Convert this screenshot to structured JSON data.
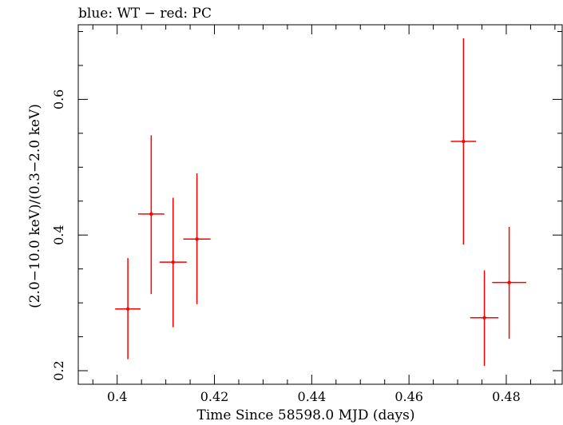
{
  "chart_data": {
    "type": "scatter",
    "title": "blue: WT − red: PC",
    "xlabel": "Time Since 58598.0 MJD (days)",
    "ylabel": "(2.0−10.0 keV)/(0.3−2.0 keV)",
    "xlim": [
      0.392,
      0.4915
    ],
    "ylim": [
      0.18,
      0.71
    ],
    "x_ticks": [
      0.4,
      0.42,
      0.44,
      0.46,
      0.48
    ],
    "x_tick_labels": [
      "0.4",
      "0.42",
      "0.44",
      "0.46",
      "0.48"
    ],
    "y_ticks": [
      0.2,
      0.4,
      0.6
    ],
    "y_tick_labels": [
      "0.2",
      "0.4",
      "0.6"
    ],
    "x_minor_step": 0.005,
    "y_minor_step": 0.05,
    "grid": false,
    "series": [
      {
        "name": "PC",
        "color": "#ff0000",
        "points": [
          {
            "x": 0.4022,
            "xerr": 0.0026,
            "y": 0.291,
            "ylo": 0.217,
            "yhi": 0.366
          },
          {
            "x": 0.407,
            "xerr": 0.0027,
            "y": 0.431,
            "ylo": 0.313,
            "yhi": 0.547
          },
          {
            "x": 0.4115,
            "xerr": 0.0028,
            "y": 0.36,
            "ylo": 0.264,
            "yhi": 0.455
          },
          {
            "x": 0.4164,
            "xerr": 0.0028,
            "y": 0.394,
            "ylo": 0.298,
            "yhi": 0.491
          },
          {
            "x": 0.4712,
            "xerr": 0.0026,
            "y": 0.538,
            "ylo": 0.386,
            "yhi": 0.69
          },
          {
            "x": 0.4755,
            "xerr": 0.0029,
            "y": 0.278,
            "ylo": 0.207,
            "yhi": 0.348
          },
          {
            "x": 0.4806,
            "xerr": 0.0035,
            "y": 0.33,
            "ylo": 0.247,
            "yhi": 0.412
          }
        ]
      }
    ]
  }
}
